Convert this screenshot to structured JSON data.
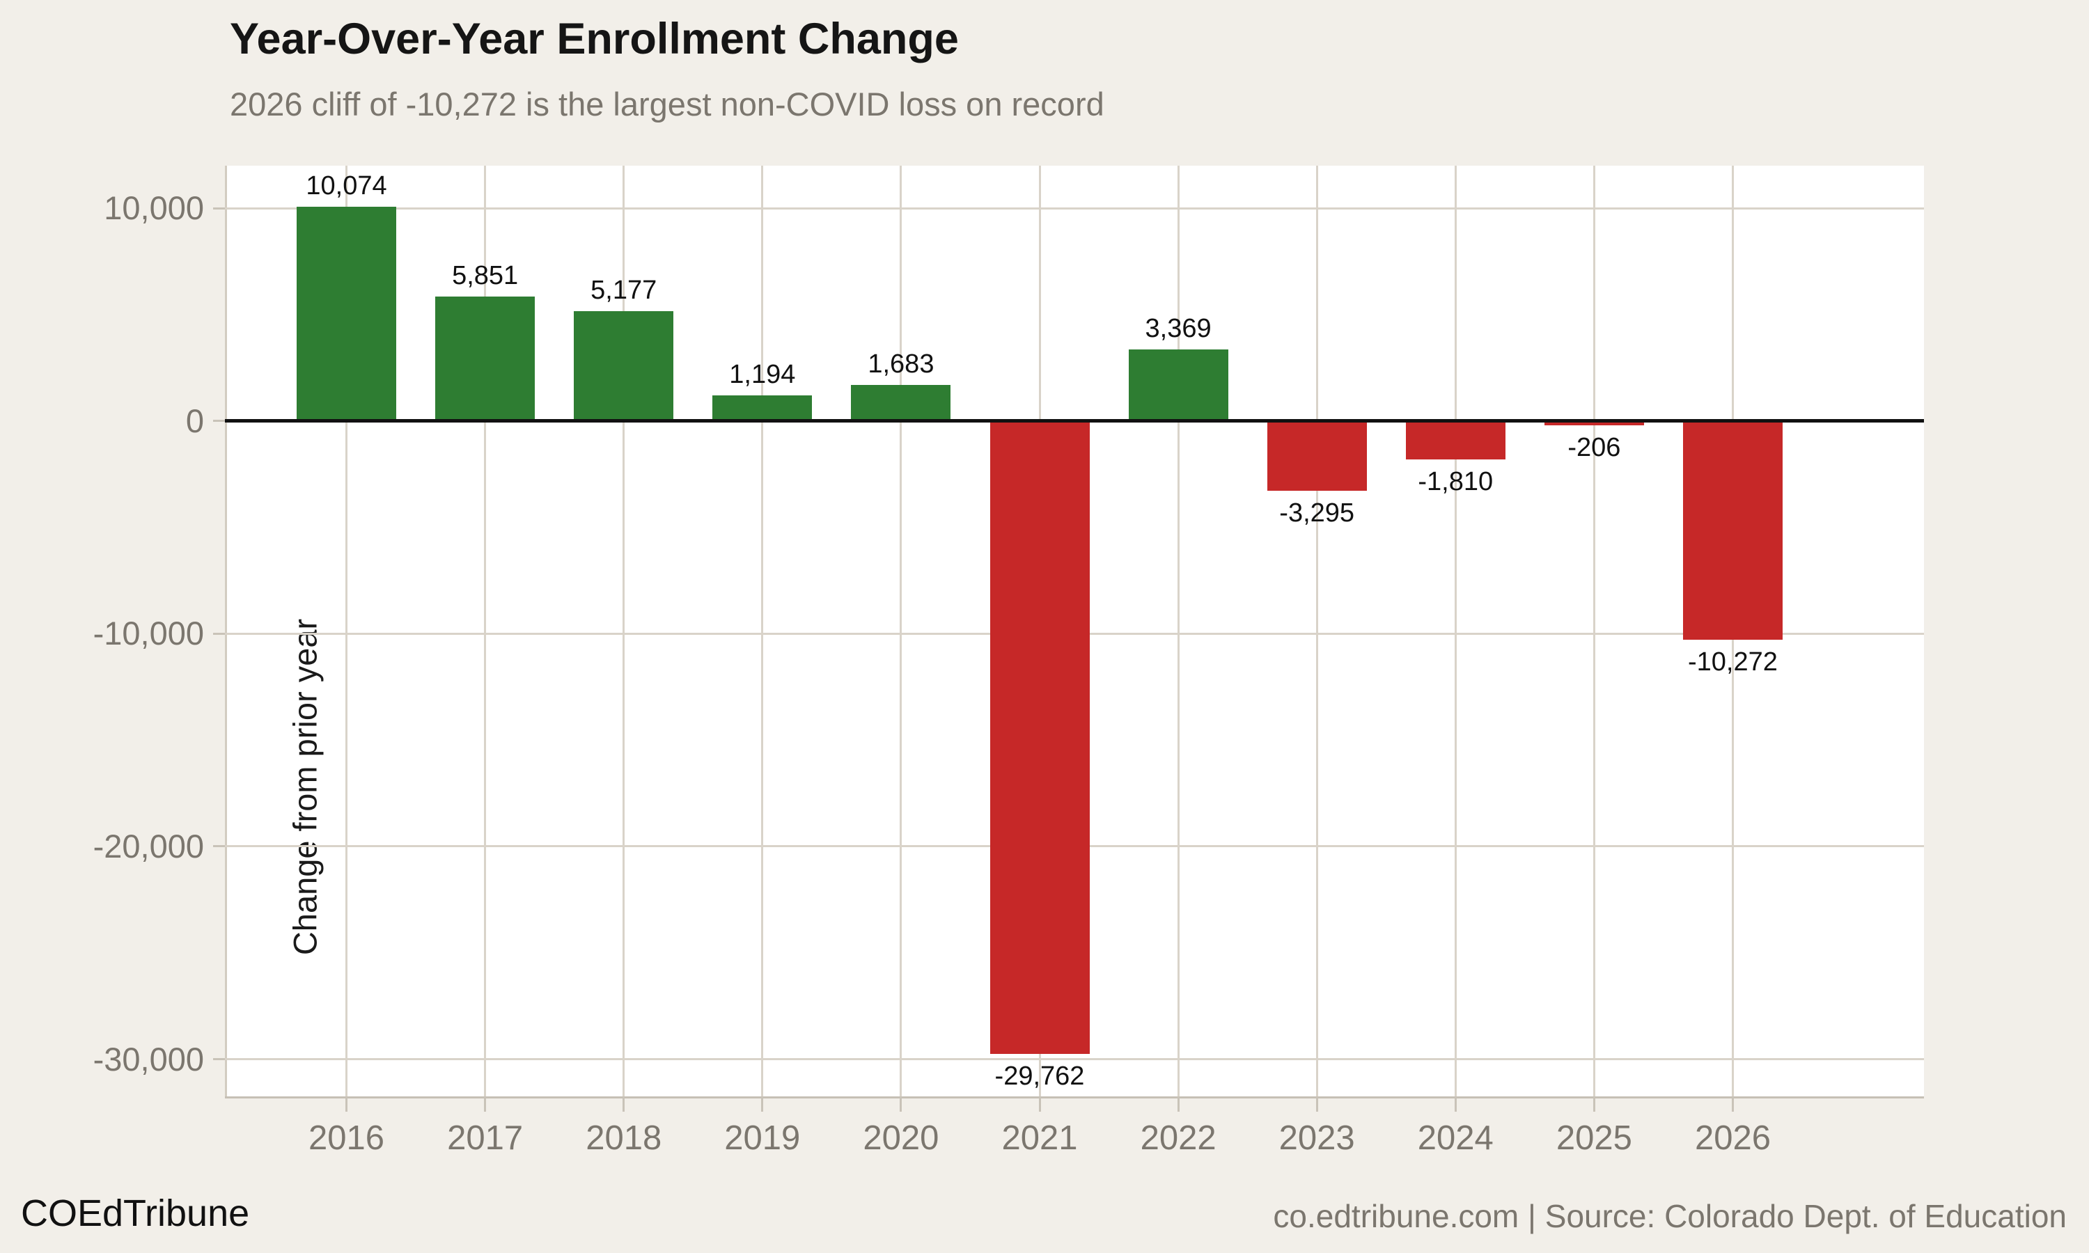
{
  "header": {
    "title": "Year-Over-Year Enrollment Change",
    "subtitle": "2026 cliff of -10,272 is the largest non-COVID loss on record"
  },
  "chart_data": {
    "type": "bar",
    "title": "Year-Over-Year Enrollment Change",
    "subtitle": "2026 cliff of -10,272 is the largest non-COVID loss on record",
    "categories": [
      "2016",
      "2017",
      "2018",
      "2019",
      "2020",
      "2021",
      "2022",
      "2023",
      "2024",
      "2025",
      "2026"
    ],
    "values": [
      10074,
      5851,
      5177,
      1194,
      1683,
      -29762,
      3369,
      -3295,
      -1810,
      -206,
      -10272
    ],
    "value_labels": [
      "10,074",
      "5,851",
      "5,177",
      "1,194",
      "1,683",
      "-29,762",
      "3,369",
      "-3,295",
      "-1,810",
      "-206",
      "-10,272"
    ],
    "xlabel": "",
    "ylabel": "Change from prior year",
    "ylim": [
      -31750,
      12000
    ],
    "yticks": [
      {
        "value": 10000,
        "label": "10,000"
      },
      {
        "value": 0,
        "label": "0"
      },
      {
        "value": -10000,
        "label": "-10,000"
      },
      {
        "value": -20000,
        "label": "-20,000"
      },
      {
        "value": -30000,
        "label": "-30,000"
      }
    ],
    "grid": true,
    "legend": "none",
    "colors": {
      "positive_bar": "#2e7d32",
      "negative_bar": "#c62828",
      "zero_line": "#111111",
      "gridline": "#d9d3c9",
      "background": "#f2efe9",
      "plot_background": "#ffffff",
      "muted_text": "#7b766e"
    }
  },
  "footer": {
    "brand": "COEdTribune",
    "attribution": "co.edtribune.com | Source: Colorado Dept. of Education"
  }
}
